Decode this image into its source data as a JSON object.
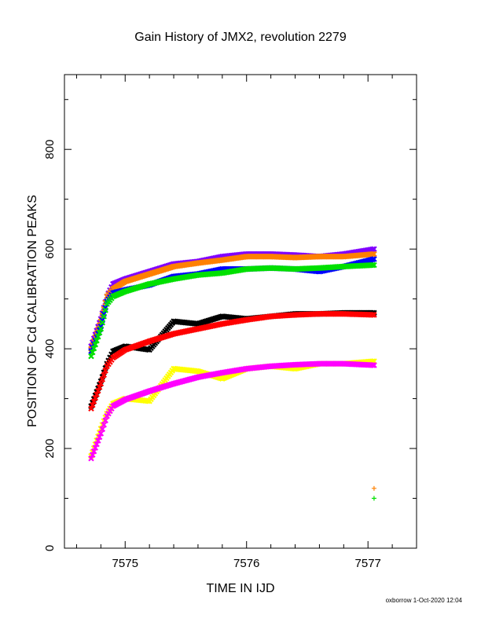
{
  "chart_data": {
    "type": "scatter",
    "title": "Gain History of JMX2, revolution 2279",
    "xlabel": "TIME IN IJD",
    "ylabel": "POSITION OF Cd CALIBRATION PEAKS",
    "xlim": [
      7574.5,
      7577.4
    ],
    "ylim": [
      0,
      950
    ],
    "xticks": [
      7575,
      7576,
      7577
    ],
    "yticks": [
      0,
      200,
      400,
      600,
      800
    ],
    "grid": false,
    "series": [
      {
        "color": "#8000ff",
        "x": [
          7574.72,
          7574.8,
          7574.85,
          7574.9,
          7575.0,
          7575.2,
          7575.4,
          7575.6,
          7575.8,
          7576.0,
          7576.2,
          7576.4,
          7576.6,
          7576.8,
          7577.05
        ],
        "y": [
          405,
          460,
          505,
          530,
          540,
          555,
          570,
          575,
          585,
          590,
          590,
          588,
          585,
          590,
          600
        ]
      },
      {
        "color": "#ff8000",
        "x": [
          7574.72,
          7574.8,
          7574.85,
          7574.9,
          7575.0,
          7575.2,
          7575.4,
          7575.6,
          7575.8,
          7576.0,
          7576.2,
          7576.4,
          7576.6,
          7576.8,
          7577.05
        ],
        "y": [
          400,
          455,
          505,
          520,
          535,
          550,
          565,
          572,
          578,
          585,
          585,
          583,
          585,
          585,
          590
        ]
      },
      {
        "color": "#0000ff",
        "x": [
          7574.72,
          7574.8,
          7574.85,
          7574.9,
          7575.0,
          7575.2,
          7575.4,
          7575.6,
          7575.8,
          7576.0,
          7576.2,
          7576.4,
          7576.6,
          7576.8,
          7577.05
        ],
        "y": [
          395,
          445,
          495,
          512,
          518,
          528,
          545,
          550,
          560,
          560,
          562,
          560,
          555,
          565,
          580
        ]
      },
      {
        "color": "#00e000",
        "x": [
          7574.72,
          7574.8,
          7574.85,
          7574.9,
          7575.0,
          7575.2,
          7575.4,
          7575.6,
          7575.8,
          7576.0,
          7576.2,
          7576.4,
          7576.6,
          7576.8,
          7577.05
        ],
        "y": [
          385,
          440,
          490,
          505,
          515,
          530,
          540,
          548,
          552,
          560,
          562,
          560,
          562,
          565,
          568
        ]
      },
      {
        "color": "#000000",
        "x": [
          7574.72,
          7574.8,
          7574.85,
          7574.9,
          7575.0,
          7575.2,
          7575.4,
          7575.6,
          7575.8,
          7576.0,
          7576.2,
          7576.4,
          7576.6,
          7576.8,
          7577.05
        ],
        "y": [
          285,
          335,
          370,
          395,
          405,
          398,
          455,
          450,
          465,
          460,
          465,
          470,
          470,
          472,
          472
        ]
      },
      {
        "color": "#ff0000",
        "x": [
          7574.72,
          7574.8,
          7574.85,
          7574.9,
          7575.0,
          7575.2,
          7575.4,
          7575.6,
          7575.8,
          7576.0,
          7576.2,
          7576.4,
          7576.6,
          7576.8,
          7577.05
        ],
        "y": [
          280,
          330,
          365,
          382,
          398,
          415,
          430,
          440,
          450,
          458,
          465,
          468,
          470,
          470,
          468
        ]
      },
      {
        "color": "#ffff00",
        "x": [
          7574.72,
          7574.8,
          7574.85,
          7574.9,
          7575.0,
          7575.2,
          7575.4,
          7575.6,
          7575.8,
          7576.0,
          7576.2,
          7576.4,
          7576.6,
          7576.8,
          7577.05
        ],
        "y": [
          185,
          240,
          270,
          290,
          300,
          295,
          360,
          355,
          340,
          360,
          365,
          360,
          370,
          370,
          375
        ]
      },
      {
        "color": "#ff00ff",
        "x": [
          7574.72,
          7574.8,
          7574.85,
          7574.9,
          7575.0,
          7575.2,
          7575.4,
          7575.6,
          7575.8,
          7576.0,
          7576.2,
          7576.4,
          7576.6,
          7576.8,
          7577.05
        ],
        "y": [
          180,
          230,
          265,
          285,
          298,
          315,
          330,
          343,
          352,
          360,
          365,
          368,
          370,
          370,
          367
        ]
      },
      {
        "color": "#ff8000",
        "x": [
          7577.05
        ],
        "y": [
          120
        ]
      },
      {
        "color": "#00e000",
        "x": [
          7577.05
        ],
        "y": [
          100
        ]
      }
    ]
  },
  "footer": "oxborrow  1-Oct-2020 12:04"
}
